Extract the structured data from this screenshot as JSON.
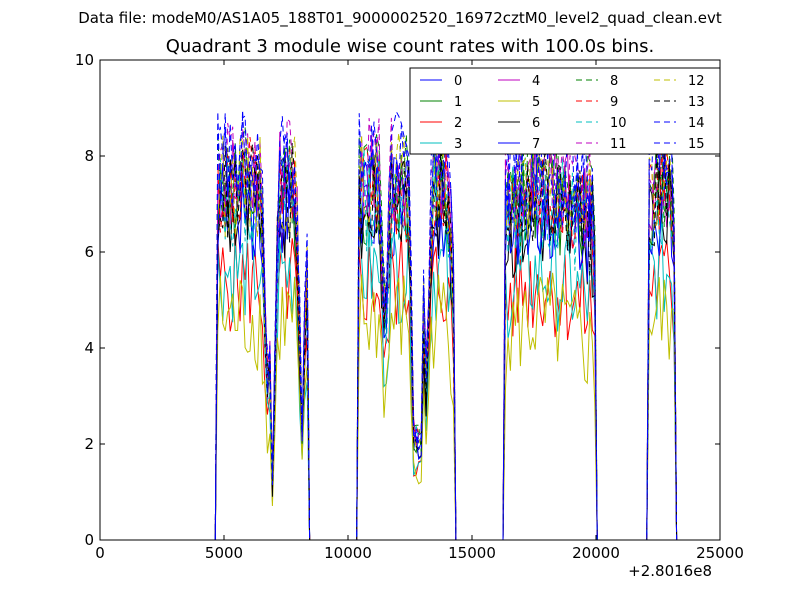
{
  "figure": {
    "suptitle": "Data file: modeM0/AS1A05_188T01_9000002520_16972cztM0_level2_quad_clean.evt"
  },
  "chart_data": {
    "type": "line",
    "title": "Quadrant 3 module wise count rates with 100.0s bins.",
    "xlabel": "",
    "ylabel": "",
    "xlim": [
      0,
      25000
    ],
    "ylim": [
      0,
      10
    ],
    "x_offset_label": "+2.8016e8",
    "x_ticks": [
      0,
      5000,
      10000,
      15000,
      20000,
      25000
    ],
    "x_tick_labels": [
      "0",
      "5000",
      "10000",
      "15000",
      "20000",
      "25000"
    ],
    "y_ticks": [
      0,
      2,
      4,
      6,
      8,
      10
    ],
    "y_tick_labels": [
      "0",
      "2",
      "4",
      "6",
      "8",
      "10"
    ],
    "legend_position": "top-right",
    "legend_columns": 4,
    "bin_seconds": 100.0,
    "segments": [
      {
        "start": 4700,
        "end": 8400
      },
      {
        "start": 10400,
        "end": 14300
      },
      {
        "start": 16300,
        "end": 20000
      },
      {
        "start": 22100,
        "end": 23200
      }
    ],
    "dips": [
      {
        "at": 6750,
        "level": 0.45
      },
      {
        "at": 6950,
        "level": 0.15
      },
      {
        "at": 8150,
        "level": 0.3
      },
      {
        "at": 11500,
        "level": 0.6
      },
      {
        "at": 12700,
        "level": 0.12
      },
      {
        "at": 12900,
        "level": 0.1
      },
      {
        "at": 13150,
        "level": 0.45
      },
      {
        "at": 14200,
        "level": 0.8
      }
    ],
    "gaps": [
      {
        "from": 8500,
        "to": 10300
      },
      {
        "from": 14400,
        "to": 16200
      },
      {
        "from": 20200,
        "to": 22000
      }
    ],
    "series": [
      {
        "name": "0",
        "color": "#0000ff",
        "dash": "solid",
        "base_level": 6.9
      },
      {
        "name": "1",
        "color": "#008000",
        "dash": "solid",
        "base_level": 7.2
      },
      {
        "name": "2",
        "color": "#ff0000",
        "dash": "solid",
        "base_level": 5.4
      },
      {
        "name": "3",
        "color": "#00bfbf",
        "dash": "solid",
        "base_level": 5.6
      },
      {
        "name": "4",
        "color": "#bf00bf",
        "dash": "solid",
        "base_level": 7.5
      },
      {
        "name": "5",
        "color": "#bfbf00",
        "dash": "solid",
        "base_level": 4.6
      },
      {
        "name": "6",
        "color": "#000000",
        "dash": "solid",
        "base_level": 6.8
      },
      {
        "name": "7",
        "color": "#0000ff",
        "dash": "solid",
        "base_level": 7.0
      },
      {
        "name": "8",
        "color": "#008000",
        "dash": "dashed",
        "base_level": 7.6
      },
      {
        "name": "9",
        "color": "#ff0000",
        "dash": "dashed",
        "base_level": 7.3
      },
      {
        "name": "10",
        "color": "#00bfbf",
        "dash": "dashed",
        "base_level": 7.1
      },
      {
        "name": "11",
        "color": "#bf00bf",
        "dash": "dashed",
        "base_level": 7.7
      },
      {
        "name": "12",
        "color": "#bfbf00",
        "dash": "dashed",
        "base_level": 7.4
      },
      {
        "name": "13",
        "color": "#000000",
        "dash": "dashed",
        "base_level": 7.2
      },
      {
        "name": "14",
        "color": "#0000ff",
        "dash": "dashed",
        "base_level": 8.0
      },
      {
        "name": "15",
        "color": "#0000ff",
        "dash": "dashed",
        "base_level": 7.8
      }
    ]
  }
}
